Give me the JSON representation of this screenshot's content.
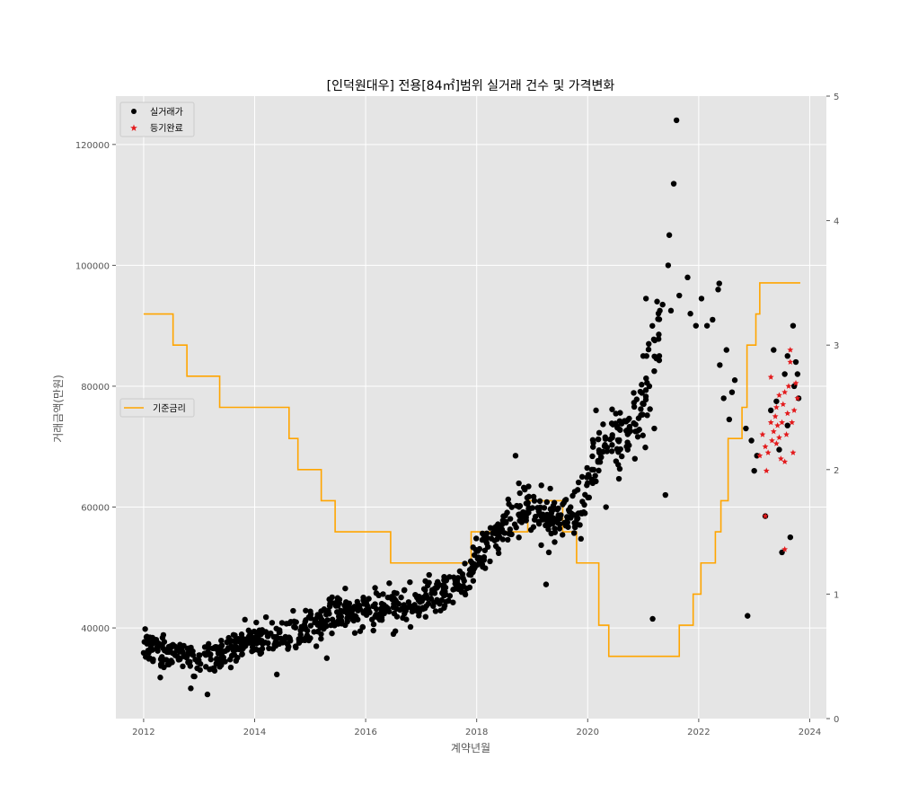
{
  "chart_data": {
    "type": "scatter",
    "title": "[인덕원대우] 전용[84㎡]범위 실거래 건수 및 가격변화",
    "xlabel": "계약년월",
    "ylabel": "거래금액(만원)",
    "xlim": [
      2011.5,
      2024.3
    ],
    "ylim": [
      25000,
      128000
    ],
    "y2lim": [
      0,
      5
    ],
    "x_ticks": [
      2012,
      2014,
      2016,
      2018,
      2020,
      2022,
      2024
    ],
    "y_ticks": [
      40000,
      60000,
      80000,
      100000,
      120000
    ],
    "y2_ticks": [
      0,
      1,
      2,
      3,
      4,
      5
    ],
    "grid": true,
    "legend": [
      {
        "label": "실거래가",
        "marker": "circle",
        "color": "#000000",
        "placement": "upper-left"
      },
      {
        "label": "등기완료",
        "marker": "star",
        "color": "#e31a1c",
        "placement": "upper-left"
      },
      {
        "label": "기준금리",
        "marker": "line",
        "color": "#ffa500",
        "placement": "center-left"
      }
    ],
    "colors": {
      "background": "#e5e5e5",
      "grid": "#ffffff",
      "deals": "#000000",
      "registered": "#e31a1c",
      "rate": "#ffa500"
    },
    "series": [
      {
        "name": "실거래가",
        "kind": "scatter",
        "anchors": [
          [
            2012.0,
            36500
          ],
          [
            2012.5,
            36000
          ],
          [
            2013.0,
            35000
          ],
          [
            2013.5,
            36500
          ],
          [
            2014.0,
            38000
          ],
          [
            2014.5,
            39000
          ],
          [
            2015.0,
            40000
          ],
          [
            2015.5,
            42000
          ],
          [
            2016.0,
            43000
          ],
          [
            2016.5,
            43500
          ],
          [
            2017.0,
            44500
          ],
          [
            2017.5,
            46000
          ],
          [
            2018.0,
            51000
          ],
          [
            2018.5,
            57000
          ],
          [
            2018.9,
            60000
          ],
          [
            2019.5,
            58000
          ],
          [
            2019.9,
            60000
          ],
          [
            2020.2,
            70000
          ],
          [
            2020.6,
            71000
          ],
          [
            2021.0,
            76000
          ],
          [
            2021.3,
            90000
          ]
        ],
        "points": [
          [
            2012.05,
            38500
          ],
          [
            2012.3,
            31800
          ],
          [
            2012.85,
            30000
          ],
          [
            2012.9,
            32000
          ],
          [
            2013.15,
            29000
          ],
          [
            2014.4,
            32300
          ],
          [
            2015.3,
            35000
          ],
          [
            2016.5,
            39000
          ],
          [
            2018.7,
            68500
          ],
          [
            2019.25,
            47200
          ],
          [
            2019.3,
            52500
          ],
          [
            2019.9,
            65000
          ],
          [
            2020.15,
            76000
          ],
          [
            2020.33,
            60000
          ],
          [
            2020.55,
            67000
          ],
          [
            2020.85,
            68000
          ],
          [
            2021.0,
            85000
          ],
          [
            2021.05,
            94500
          ],
          [
            2021.1,
            87000
          ],
          [
            2021.17,
            41500
          ],
          [
            2021.2,
            73000
          ],
          [
            2021.25,
            94000
          ],
          [
            2021.3,
            92500
          ],
          [
            2021.35,
            93500
          ],
          [
            2021.4,
            62000
          ],
          [
            2021.45,
            100000
          ],
          [
            2021.47,
            105000
          ],
          [
            2021.5,
            92500
          ],
          [
            2021.55,
            113500
          ],
          [
            2021.6,
            124000
          ],
          [
            2021.65,
            95000
          ],
          [
            2021.8,
            98000
          ],
          [
            2021.85,
            92000
          ],
          [
            2021.95,
            90000
          ],
          [
            2022.05,
            94500
          ],
          [
            2022.15,
            90000
          ],
          [
            2022.25,
            91000
          ],
          [
            2022.35,
            96000
          ],
          [
            2022.37,
            97000
          ],
          [
            2022.38,
            83500
          ],
          [
            2022.45,
            78000
          ],
          [
            2022.5,
            86000
          ],
          [
            2022.55,
            74500
          ],
          [
            2022.6,
            79000
          ],
          [
            2022.65,
            81000
          ],
          [
            2022.85,
            73000
          ],
          [
            2022.88,
            42000
          ],
          [
            2022.95,
            71000
          ],
          [
            2023.0,
            66000
          ],
          [
            2023.05,
            68500
          ],
          [
            2023.2,
            58500
          ],
          [
            2023.3,
            76000
          ],
          [
            2023.35,
            86000
          ],
          [
            2023.5,
            52500
          ],
          [
            2023.55,
            82000
          ],
          [
            2023.6,
            85000
          ],
          [
            2023.65,
            55000
          ],
          [
            2023.7,
            90000
          ],
          [
            2023.72,
            80000
          ],
          [
            2023.75,
            84000
          ],
          [
            2023.78,
            82000
          ],
          [
            2023.8,
            78000
          ],
          [
            2023.6,
            73500
          ],
          [
            2023.4,
            77500
          ],
          [
            2023.45,
            69500
          ]
        ]
      },
      {
        "name": "등기완료",
        "kind": "scatter",
        "points": [
          [
            2023.1,
            68500
          ],
          [
            2023.15,
            72000
          ],
          [
            2023.2,
            70000
          ],
          [
            2023.22,
            66000
          ],
          [
            2023.25,
            69000
          ],
          [
            2023.3,
            74000
          ],
          [
            2023.32,
            71000
          ],
          [
            2023.35,
            72500
          ],
          [
            2023.38,
            75000
          ],
          [
            2023.4,
            76500
          ],
          [
            2023.42,
            73500
          ],
          [
            2023.45,
            71500
          ],
          [
            2023.48,
            68000
          ],
          [
            2023.5,
            74000
          ],
          [
            2023.52,
            77000
          ],
          [
            2023.55,
            79000
          ],
          [
            2023.58,
            72000
          ],
          [
            2023.6,
            75500
          ],
          [
            2023.62,
            80000
          ],
          [
            2023.65,
            86000
          ],
          [
            2023.68,
            74000
          ],
          [
            2023.7,
            69000
          ],
          [
            2023.72,
            76000
          ],
          [
            2023.75,
            80500
          ],
          [
            2023.78,
            78000
          ],
          [
            2023.2,
            58500
          ],
          [
            2023.55,
            53000
          ],
          [
            2023.3,
            81500
          ],
          [
            2023.45,
            78500
          ],
          [
            2023.65,
            84000
          ],
          [
            2023.4,
            70500
          ],
          [
            2023.55,
            67500
          ]
        ]
      },
      {
        "name": "기준금리",
        "kind": "step",
        "axis": "right",
        "points": [
          [
            2012.0,
            3.25
          ],
          [
            2012.53,
            3.0
          ],
          [
            2012.78,
            2.75
          ],
          [
            2013.37,
            2.5
          ],
          [
            2014.62,
            2.25
          ],
          [
            2014.78,
            2.0
          ],
          [
            2015.2,
            1.75
          ],
          [
            2015.45,
            1.5
          ],
          [
            2016.45,
            1.25
          ],
          [
            2017.9,
            1.5
          ],
          [
            2018.92,
            1.75
          ],
          [
            2019.55,
            1.5
          ],
          [
            2019.8,
            1.25
          ],
          [
            2020.2,
            0.75
          ],
          [
            2020.38,
            0.5
          ],
          [
            2021.65,
            0.75
          ],
          [
            2021.9,
            1.0
          ],
          [
            2022.04,
            1.25
          ],
          [
            2022.3,
            1.5
          ],
          [
            2022.4,
            1.75
          ],
          [
            2022.53,
            2.25
          ],
          [
            2022.78,
            2.5
          ],
          [
            2022.87,
            3.0
          ],
          [
            2023.03,
            3.25
          ],
          [
            2023.1,
            3.5
          ],
          [
            2023.83,
            3.5
          ]
        ]
      }
    ]
  }
}
